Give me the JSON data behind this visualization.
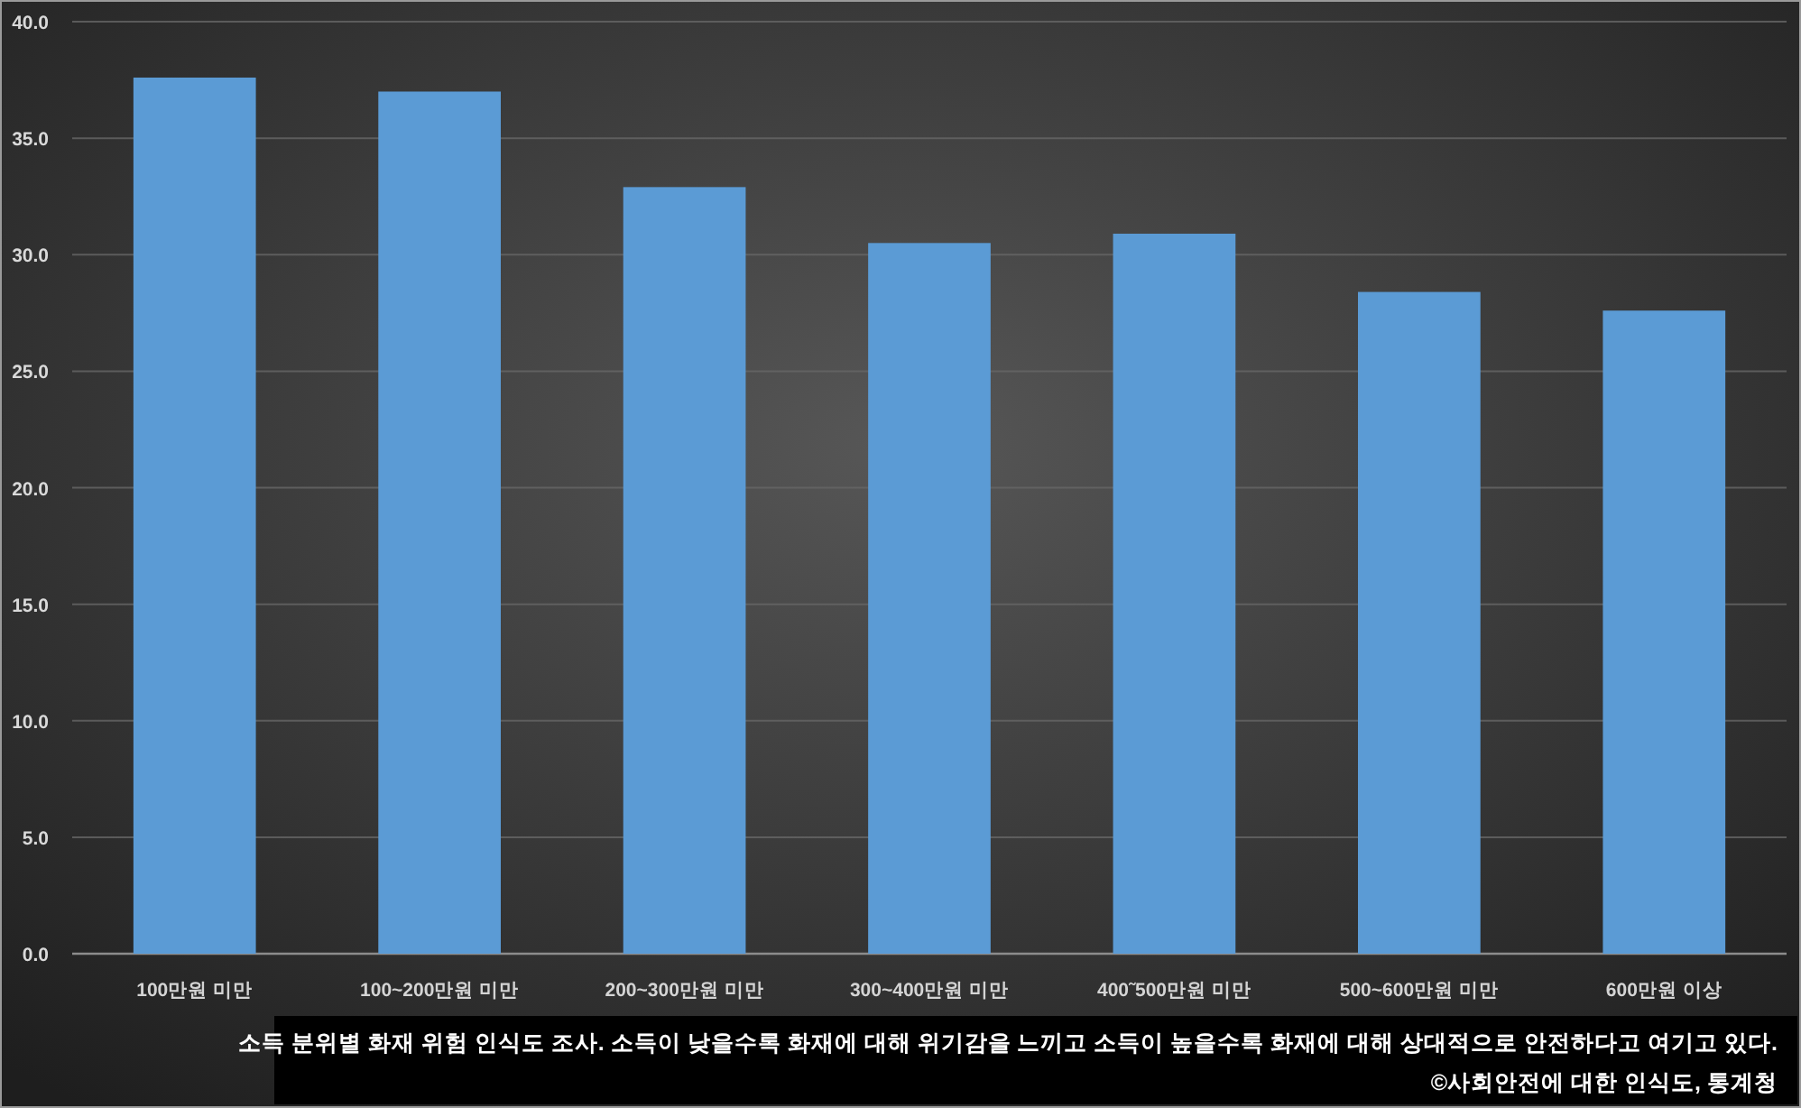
{
  "chart_data": {
    "type": "bar",
    "categories": [
      "100만원 미만",
      "100~200만원 미만",
      "200~300만원 미만",
      "300~400만원 미만",
      "400˜500만원 미만",
      "500~600만원 미만",
      "600만원 이상"
    ],
    "values": [
      37.6,
      37.0,
      32.9,
      30.5,
      30.9,
      28.4,
      27.6
    ],
    "color": "#5b9bd5",
    "ylim": [
      0,
      40
    ],
    "yticks": [
      {
        "value": 0,
        "label": "0.0"
      },
      {
        "value": 5,
        "label": "5.0"
      },
      {
        "value": 10,
        "label": "10.0"
      },
      {
        "value": 15,
        "label": "15.0"
      },
      {
        "value": 20,
        "label": "20.0"
      },
      {
        "value": 25,
        "label": "25.0"
      },
      {
        "value": 30,
        "label": "30.0"
      },
      {
        "value": 35,
        "label": "35.0"
      },
      {
        "value": 40,
        "label": "40.0"
      }
    ],
    "grid": "y",
    "annotations": [
      "소득 분위별 화재 위험 인식도 조사. 소득이 낮을수록 화재에 대해 위기감을 느끼고 소득이 높을수록 화재에 대해 상대적으로 안전하다고 여기고 있다.",
      "©사회안전에 대한 인식도, 통계청"
    ]
  }
}
